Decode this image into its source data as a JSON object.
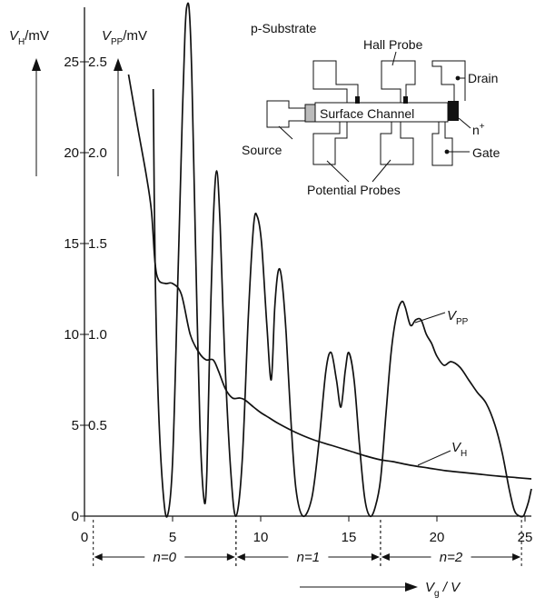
{
  "chart_data": {
    "type": "line",
    "x_axis": {
      "range": [
        0,
        25
      ],
      "ticks": [
        "0",
        "5",
        "10",
        "15",
        "20",
        "25"
      ],
      "label_main": "V",
      "label_sub": "g",
      "label_rest": " / V"
    },
    "y_axis_left": {
      "range": [
        0,
        28
      ],
      "ticks": [
        "0",
        "5",
        "10",
        "15",
        "20",
        "25"
      ],
      "label_main": "V",
      "label_sub": "H",
      "label_rest": "/mV"
    },
    "y_axis_right": {
      "range": [
        0,
        2.8
      ],
      "ticks": [
        "0.5",
        "1.0",
        "1.5",
        "2.0",
        "2.5"
      ],
      "label_main": "V",
      "label_sub": "PP",
      "label_rest": "/mV"
    },
    "regions": [
      {
        "label": "n=0",
        "from": 0.5,
        "to": 8.6
      },
      {
        "label": "n=1",
        "from": 8.6,
        "to": 16.8
      },
      {
        "label": "n=2",
        "from": 16.8,
        "to": 24.8
      }
    ],
    "series": [
      {
        "name": "V_H",
        "label_main": "V",
        "label_sub": "H",
        "x": [
          2.5,
          3.0,
          3.5,
          3.8,
          4.0,
          4.2,
          4.6,
          5.0,
          5.5,
          6.0,
          6.5,
          6.9,
          7.3,
          7.6,
          8.0,
          8.4,
          8.8,
          9.1,
          9.6,
          10.0,
          10.5,
          11.0,
          12.0,
          13.0,
          14.0,
          15.0,
          16.0,
          16.8,
          17.5,
          18.5,
          19.5,
          20.5,
          21.5,
          22.5,
          23.5,
          24.5,
          25.5
        ],
        "y": [
          24.3,
          21.5,
          18.8,
          16.8,
          14.0,
          13.0,
          12.8,
          12.8,
          12.2,
          10.0,
          9.0,
          8.6,
          8.6,
          8.0,
          7.0,
          6.5,
          6.5,
          6.4,
          6.0,
          5.7,
          5.4,
          5.1,
          4.6,
          4.2,
          3.9,
          3.6,
          3.3,
          3.1,
          3.0,
          2.8,
          2.65,
          2.5,
          2.4,
          2.3,
          2.2,
          2.12,
          2.05
        ]
      },
      {
        "name": "V_PP",
        "label_main": "V",
        "label_sub": "PP",
        "x": [
          3.9,
          4.02,
          4.2,
          4.45,
          4.7,
          5.0,
          5.3,
          5.55,
          5.7,
          5.8,
          5.95,
          6.1,
          6.3,
          6.55,
          6.8,
          6.95,
          7.1,
          7.3,
          7.5,
          7.7,
          7.95,
          8.3,
          8.6,
          8.95,
          9.3,
          9.6,
          9.8,
          10.05,
          10.35,
          10.6,
          10.8,
          11.0,
          11.2,
          11.45,
          11.7,
          12.0,
          12.4,
          12.9,
          13.3,
          13.7,
          14.0,
          14.3,
          14.55,
          14.8,
          15.0,
          15.3,
          15.6,
          15.9,
          16.2,
          16.5,
          16.8,
          17.1,
          17.4,
          17.7,
          18.0,
          18.2,
          18.5,
          18.8,
          19.1,
          19.4,
          19.7,
          20.0,
          20.4,
          20.8,
          21.3,
          21.8,
          22.3,
          22.8,
          23.3,
          23.7,
          24.1,
          24.4,
          24.7,
          24.9,
          25.0,
          25.2,
          25.4
        ],
        "y": [
          2.35,
          1.3,
          0.6,
          0.15,
          0.0,
          0.3,
          1.3,
          2.2,
          2.65,
          2.8,
          2.78,
          2.4,
          1.5,
          0.5,
          0.08,
          0.25,
          0.9,
          1.6,
          1.9,
          1.6,
          0.9,
          0.25,
          0.0,
          0.3,
          1.1,
          1.6,
          1.65,
          1.5,
          1.05,
          0.75,
          1.15,
          1.35,
          1.3,
          1.0,
          0.55,
          0.15,
          0.0,
          0.1,
          0.4,
          0.8,
          0.9,
          0.75,
          0.6,
          0.8,
          0.9,
          0.75,
          0.4,
          0.1,
          0.0,
          0.05,
          0.2,
          0.55,
          0.9,
          1.1,
          1.18,
          1.15,
          1.05,
          1.08,
          1.08,
          1.0,
          0.95,
          0.88,
          0.83,
          0.85,
          0.82,
          0.75,
          0.68,
          0.62,
          0.5,
          0.35,
          0.15,
          0.03,
          0.0,
          0.0,
          0.02,
          0.08,
          0.15
        ]
      }
    ],
    "inset_diagram": {
      "title": "p-Substrate",
      "labels": {
        "hall_probe": "Hall Probe",
        "drain": "Drain",
        "source": "Source",
        "channel": "Surface Channel",
        "n_plus_main": "n",
        "n_plus_sup": "+",
        "gate": "Gate",
        "potential_probes": "Potential Probes"
      }
    }
  }
}
